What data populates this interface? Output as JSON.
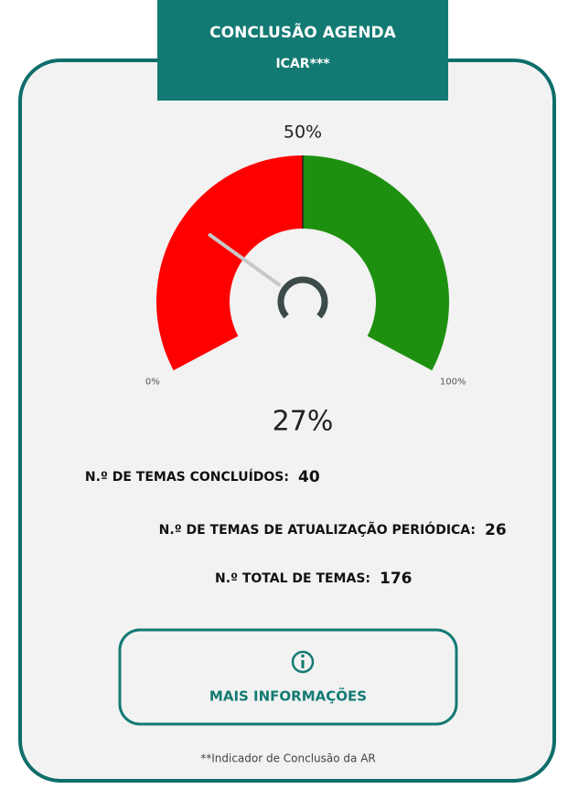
{
  "header": {
    "title_line1": "CONCLUSÃO AGENDA",
    "title_line2": "ICAR***"
  },
  "gauge": {
    "min": 0,
    "max": 100,
    "value": 27,
    "value_label": "27%",
    "ticks": [
      {
        "value": 0,
        "label": "0%"
      },
      {
        "value": 50,
        "label": "50%"
      },
      {
        "value": 100,
        "label": "100%"
      }
    ],
    "segments": [
      {
        "from": 0,
        "to": 50,
        "color": "#ff0000"
      },
      {
        "from": 50,
        "to": 100,
        "color": "#1e9010"
      }
    ],
    "needle_color": "#c8c8c8",
    "hub_color": "#3c4a4a"
  },
  "stats": [
    {
      "label": "N.º DE TEMAS CONCLUÍDOS:",
      "value": 40
    },
    {
      "label": "N.º DE TEMAS  DE ATUALIZAÇÃO PERIÓDICA:",
      "value": 26
    },
    {
      "label": "N.º TOTAL DE TEMAS:",
      "value": 176
    }
  ],
  "button": {
    "label": "MAIS INFORMAÇÕES"
  },
  "footnote": "**Indicador de Conclusão da AR"
}
